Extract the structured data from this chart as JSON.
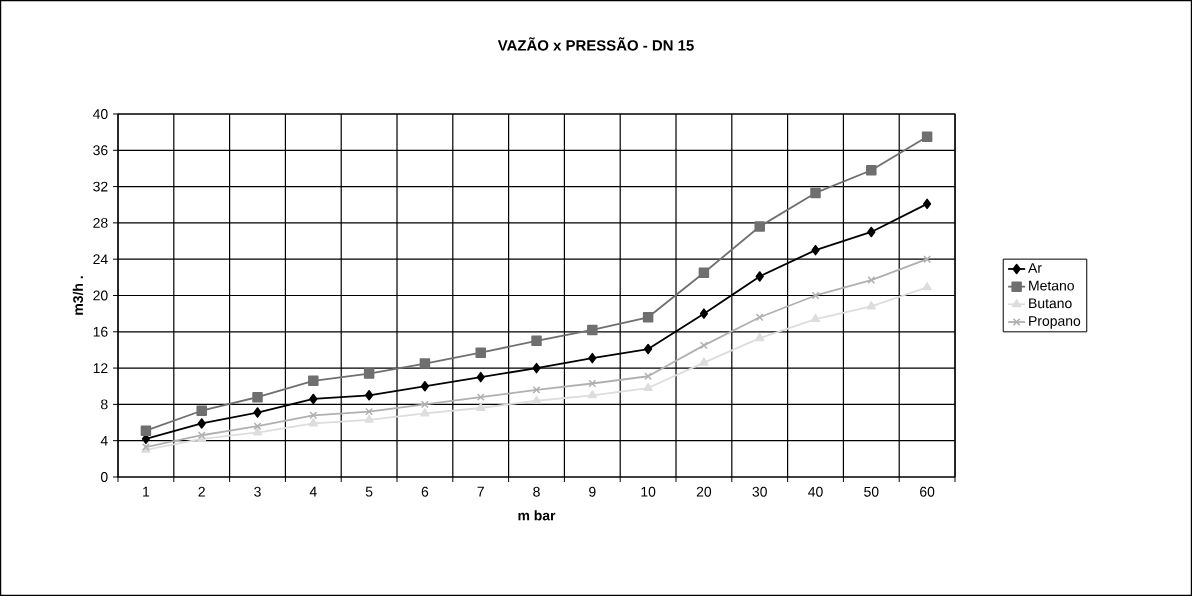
{
  "chart_data": {
    "type": "line",
    "title": "VAZÃO x PRESSÃO -  DN 15",
    "xlabel": "m bar",
    "ylabel": "m3/h .",
    "categories": [
      "1",
      "2",
      "3",
      "4",
      "5",
      "6",
      "7",
      "8",
      "9",
      "10",
      "20",
      "30",
      "40",
      "50",
      "60"
    ],
    "series": [
      {
        "name": "Ar",
        "color": "#000000",
        "marker": "diamond",
        "values": [
          4.2,
          5.9,
          7.1,
          8.6,
          9.0,
          10.0,
          11.0,
          12.0,
          13.1,
          14.1,
          18.0,
          22.1,
          25.0,
          27.0,
          30.1
        ]
      },
      {
        "name": "Metano",
        "color": "#6f6f6f",
        "marker": "square",
        "values": [
          5.1,
          7.3,
          8.8,
          10.6,
          11.4,
          12.5,
          13.7,
          15.0,
          16.2,
          17.6,
          22.5,
          27.6,
          31.3,
          33.8,
          37.5
        ]
      },
      {
        "name": "Butano",
        "color": "#dddddd",
        "marker": "triangle",
        "values": [
          3.0,
          4.2,
          4.9,
          5.9,
          6.3,
          7.0,
          7.6,
          8.4,
          9.0,
          9.8,
          12.6,
          15.3,
          17.4,
          18.8,
          20.9
        ]
      },
      {
        "name": "Propano",
        "color": "#b0b0b0",
        "marker": "cross",
        "values": [
          3.3,
          4.6,
          5.6,
          6.8,
          7.2,
          8.0,
          8.8,
          9.6,
          10.3,
          11.1,
          14.5,
          17.6,
          20.0,
          21.7,
          24.0
        ]
      }
    ],
    "ylim": [
      0,
      40
    ],
    "yticks": [
      0,
      4,
      8,
      12,
      16,
      20,
      24,
      28,
      32,
      36,
      40
    ],
    "grid": true,
    "legend": "right"
  }
}
